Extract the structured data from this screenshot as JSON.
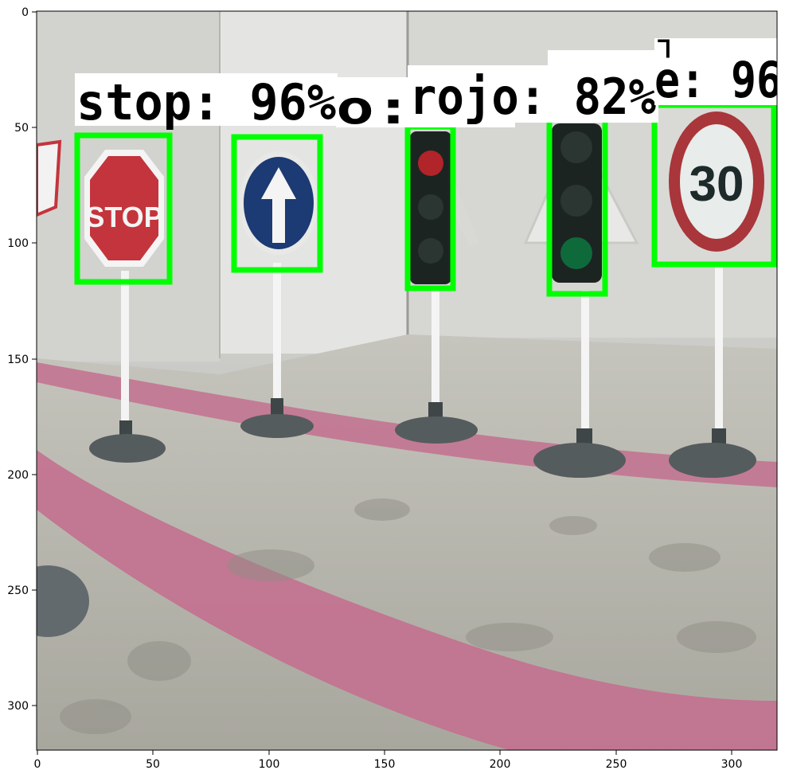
{
  "figure": {
    "x_ticks": [
      "0",
      "50",
      "100",
      "150",
      "200",
      "250",
      "300"
    ],
    "y_ticks": [
      "0",
      "50",
      "100",
      "150",
      "200",
      "250",
      "300"
    ],
    "axis_color": "#000000",
    "box_color": "#00ff00",
    "label_background": "#ffffff"
  },
  "detections": [
    {
      "label": "stop: 96%"
    },
    {
      "label": "o: "
    },
    {
      "label": "rojo: 82%"
    },
    {
      "label": "e: 96"
    },
    {
      "label": "ᒣ"
    }
  ],
  "scene": {
    "wall_color": "#d9d9d6",
    "floor_color": "#bdbcb2",
    "stripe_color": "#c3708f",
    "stop_sign_color": "#c4343c",
    "blue_sign_color": "#1c3a73",
    "traffic_light_body": "#1c2422",
    "red_light": "#b0242a",
    "green_light": "#0f6a3b",
    "speed_sign_text": "30"
  }
}
